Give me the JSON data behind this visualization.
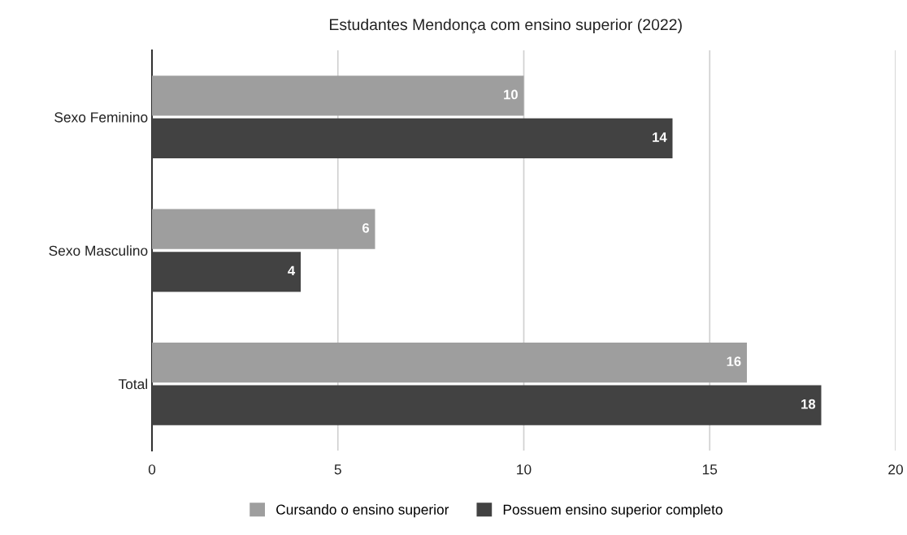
{
  "chart_data": {
    "type": "bar",
    "orientation": "horizontal",
    "title": "Estudantes Mendonça com ensino superior (2022)",
    "categories": [
      "Sexo Feminino",
      "Sexo Masculino",
      "Total"
    ],
    "series": [
      {
        "name": "Cursando o ensino superior",
        "color": "#9e9e9e",
        "values": [
          10,
          6,
          16
        ]
      },
      {
        "name": "Possuem ensino superior completo",
        "color": "#424242",
        "values": [
          14,
          4,
          18
        ]
      }
    ],
    "xlim": [
      0,
      20
    ],
    "xticks": [
      0,
      5,
      10,
      15,
      20
    ],
    "grid": "x",
    "legend": "bottom",
    "data_labels": true
  }
}
